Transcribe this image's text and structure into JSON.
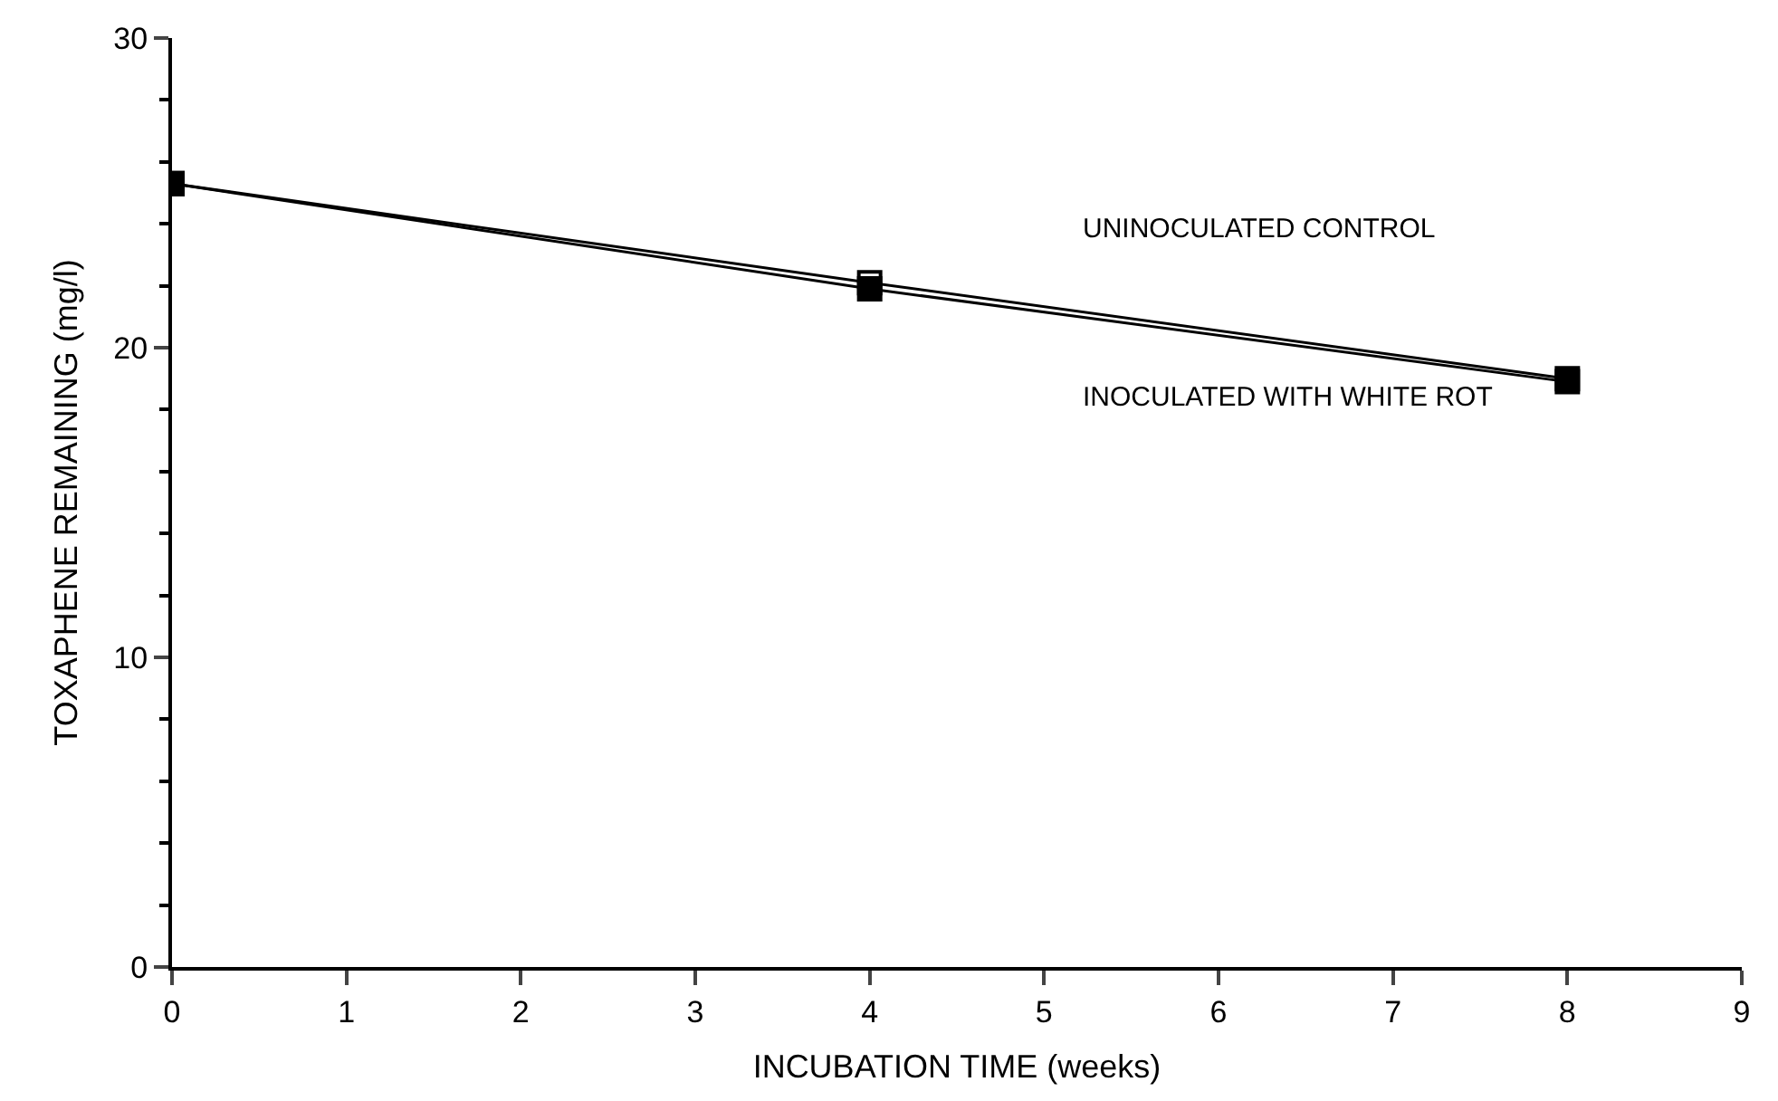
{
  "chart_data": {
    "type": "line",
    "xlabel": "INCUBATION TIME (weeks)",
    "ylabel": "TOXAPHENE REMAINING (mg/l)",
    "x": [
      0,
      4,
      8
    ],
    "series": [
      {
        "name": "UNINOCULATED CONTROL",
        "color": "#000000",
        "marker": "square-open",
        "values": [
          25.3,
          22.1,
          19.0
        ]
      },
      {
        "name": "INOCULATED WITH WHITE ROT",
        "color": "#000000",
        "marker": "square",
        "values": [
          25.3,
          21.9,
          18.9
        ]
      }
    ],
    "xlim": [
      0,
      9
    ],
    "xticks": [
      0,
      1,
      2,
      3,
      4,
      5,
      6,
      7,
      8,
      9
    ],
    "ylim": [
      0,
      30
    ],
    "yticks": [
      0,
      10,
      20,
      30
    ],
    "legend": false,
    "line_style": "solid"
  }
}
